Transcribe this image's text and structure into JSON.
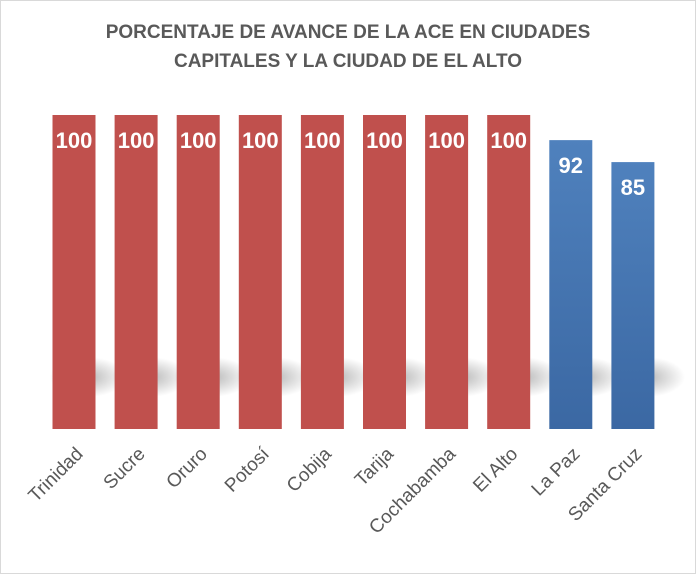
{
  "chart_data": {
    "type": "bar",
    "title_line1": "PORCENTAJE DE AVANCE DE LA ACE EN CIUDADES",
    "title_line2": "CAPITALES Y LA CIUDAD DE EL ALTO",
    "categories": [
      "Trinidad",
      "Sucre",
      "Oruro",
      "Potosí",
      "Cobija",
      "Tarija",
      "Cochabamba",
      "El Alto",
      "La Paz",
      "Santa Cruz"
    ],
    "values": [
      100,
      100,
      100,
      100,
      100,
      100,
      100,
      100,
      92,
      85
    ],
    "ylim": [
      0,
      100
    ],
    "xlabel": "",
    "ylabel": "",
    "colors": {
      "complete": "#c0504d",
      "incomplete": "#4f81bd"
    }
  }
}
